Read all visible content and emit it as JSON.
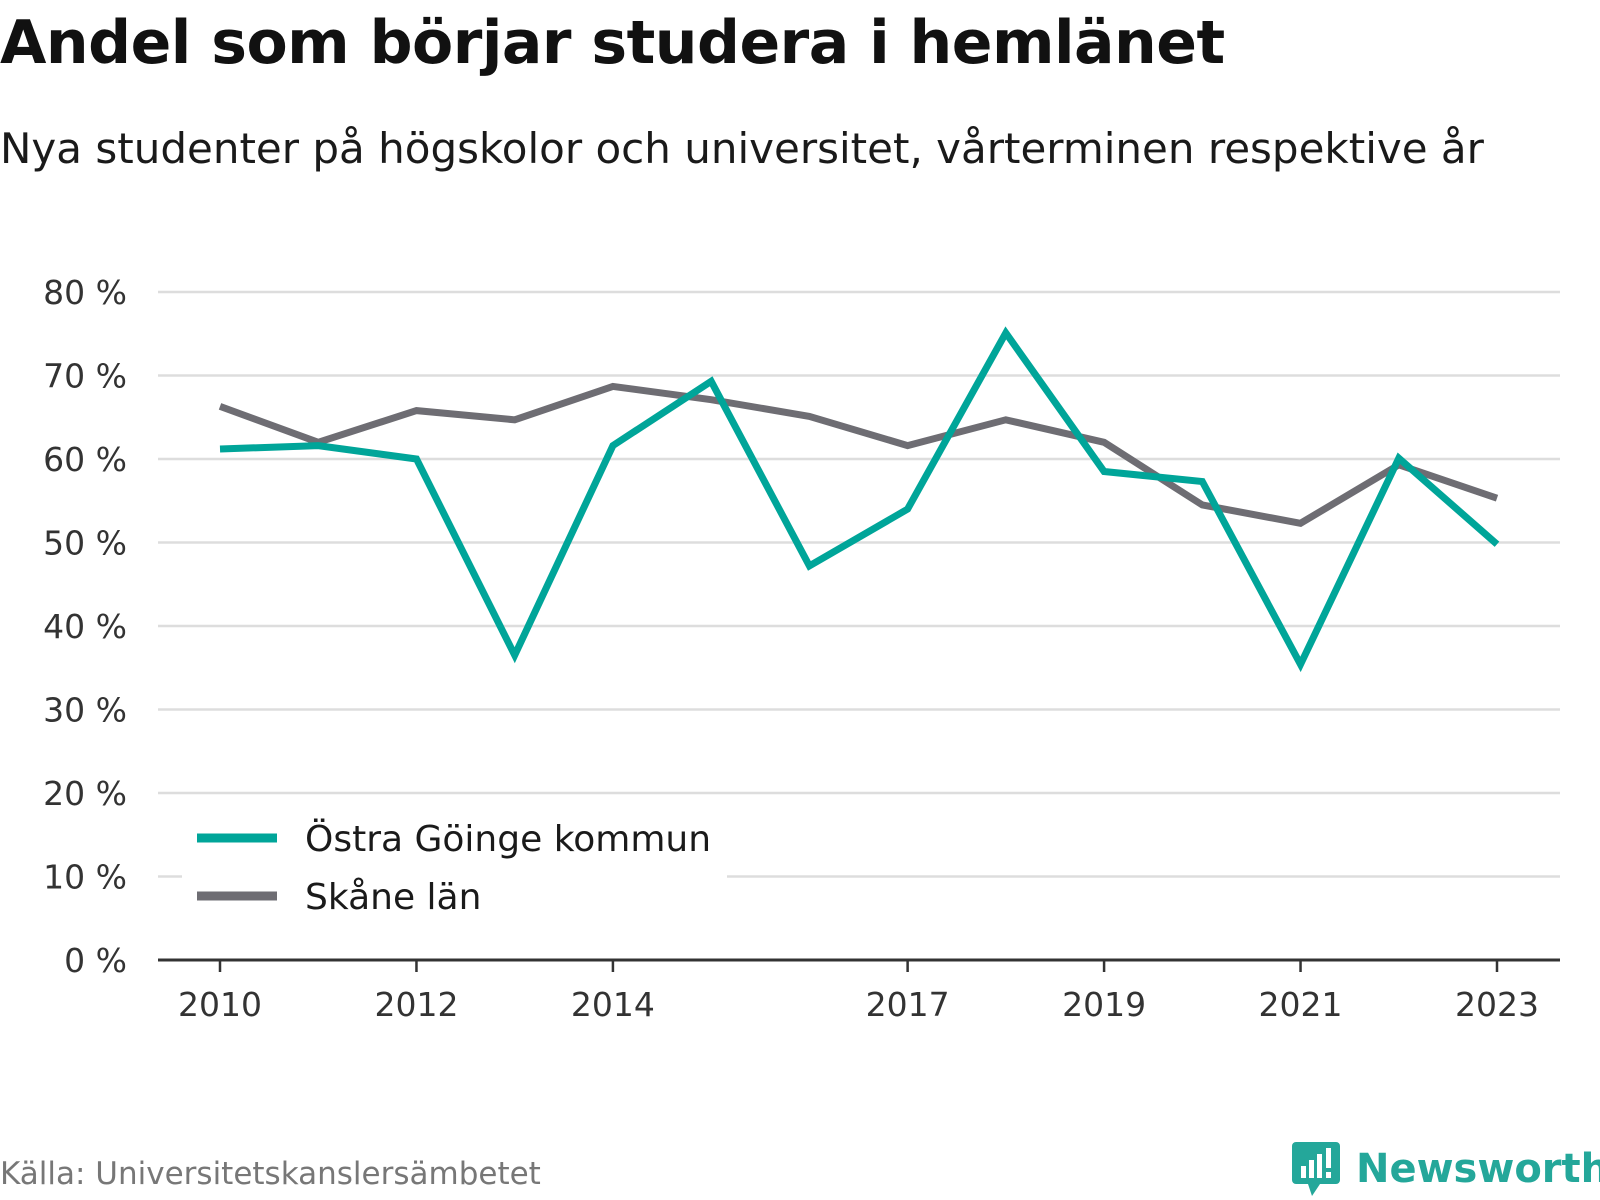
{
  "header": {
    "title": "Andel som börjar studera i hemlänet",
    "subtitle": "Nya studenter på högskolor och universitet, vårterminen respektive år"
  },
  "footer": {
    "source": "Källa: Universitetskanslersämbetet",
    "brand": "Newsworthy"
  },
  "colors": {
    "series_1": "#00a599",
    "series_2": "#6e6d73",
    "grid": "#dddddd",
    "axis": "#333333",
    "brand": "#24a79a"
  },
  "chart_data": {
    "type": "line",
    "x": [
      2010,
      2011,
      2012,
      2013,
      2014,
      2015,
      2016,
      2017,
      2018,
      2019,
      2020,
      2021,
      2022,
      2023
    ],
    "x_tick_labels": [
      "2010",
      "2012",
      "2014",
      "2017",
      "2019",
      "2021",
      "2023"
    ],
    "y_tick_labels": [
      "0 %",
      "10 %",
      "20 %",
      "30 %",
      "40 %",
      "50 %",
      "60 %",
      "70 %",
      "80 %"
    ],
    "ylim": [
      0,
      80
    ],
    "y_unit": "%",
    "grid": true,
    "legend_position": "bottom-left",
    "series": [
      {
        "name": "Östra Göinge kommun",
        "color": "#00a599",
        "values": [
          61.2,
          61.6,
          60.0,
          36.5,
          61.6,
          69.3,
          47.2,
          54.0,
          75.1,
          58.5,
          57.3,
          35.4,
          60.1,
          49.8
        ]
      },
      {
        "name": "Skåne län",
        "color": "#6e6d73",
        "values": [
          66.3,
          62.0,
          65.8,
          64.7,
          68.7,
          67.1,
          65.1,
          61.6,
          64.7,
          62.0,
          54.5,
          52.3,
          59.3,
          55.3
        ]
      }
    ]
  }
}
